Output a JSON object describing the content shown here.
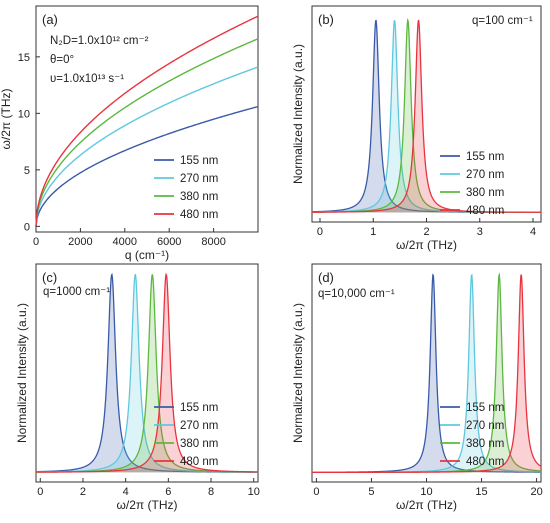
{
  "colors": {
    "155 nm": "#3a5ba8",
    "270 nm": "#5fc8de",
    "380 nm": "#5cb840",
    "480 nm": "#e8343f"
  },
  "chart_data": [
    {
      "panel": "(a)",
      "type": "line",
      "xlabel": "q (cm⁻¹)",
      "ylabel": "ω/2π (THz)",
      "xlim": [
        0,
        10000
      ],
      "ylim": [
        -0.5,
        19.5
      ],
      "xticks": [
        0,
        2000,
        4000,
        6000,
        8000
      ],
      "yticks": [
        0,
        5,
        10,
        15
      ],
      "annotations": [
        "N₂D=1.0x10¹² cm⁻²",
        "θ=0°",
        "υ=1.0x10¹³ s⁻¹"
      ],
      "legend_position": "bottom-right",
      "series": [
        {
          "name": "155 nm",
          "x": [
            0,
            100,
            1000,
            2000,
            4000,
            6000,
            8000,
            10000
          ],
          "y": [
            0,
            1.05,
            3.35,
            4.75,
            6.7,
            8.2,
            9.5,
            10.6
          ]
        },
        {
          "name": "270 nm",
          "x": [
            0,
            100,
            1000,
            2000,
            4000,
            6000,
            8000,
            10000
          ],
          "y": [
            0,
            1.4,
            4.45,
            6.3,
            8.9,
            10.9,
            12.6,
            14.1
          ]
        },
        {
          "name": "380 nm",
          "x": [
            0,
            100,
            1000,
            2000,
            4000,
            6000,
            8000,
            10000
          ],
          "y": [
            0,
            1.65,
            5.25,
            7.4,
            10.5,
            12.9,
            14.9,
            16.6
          ]
        },
        {
          "name": "480 nm",
          "x": [
            0,
            100,
            1000,
            2000,
            4000,
            6000,
            8000,
            10000
          ],
          "y": [
            0,
            1.85,
            5.9,
            8.3,
            11.8,
            14.4,
            16.7,
            18.6
          ]
        }
      ]
    },
    {
      "panel": "(b)",
      "type": "line",
      "xlabel": "ω/2π (THz)",
      "ylabel": "Normalized Intensity (a.u.)",
      "xlim": [
        -0.15,
        4.15
      ],
      "ylim": [
        0,
        1.07
      ],
      "xticks": [
        0,
        1,
        2,
        3,
        4
      ],
      "annotations": [
        "q=100 cm⁻¹"
      ],
      "legend_position": "bottom-right",
      "lineshape": "lorentzian",
      "peaks": [
        {
          "name": "155 nm",
          "center": 1.05,
          "hwhm": 0.075
        },
        {
          "name": "270 nm",
          "center": 1.4,
          "hwhm": 0.075
        },
        {
          "name": "380 nm",
          "center": 1.65,
          "hwhm": 0.075
        },
        {
          "name": "480 nm",
          "center": 1.85,
          "hwhm": 0.075
        }
      ]
    },
    {
      "panel": "(c)",
      "type": "line",
      "xlabel": "ω/2π (THz)",
      "ylabel": "Normalized Intensity (a.u.)",
      "xlim": [
        -0.2,
        10.2
      ],
      "ylim": [
        0,
        1.05
      ],
      "xticks": [
        0,
        2,
        4,
        6,
        8,
        10
      ],
      "annotations": [
        "q=1000 cm⁻¹"
      ],
      "legend_position": "bottom-right",
      "lineshape": "lorentzian",
      "peaks": [
        {
          "name": "155 nm",
          "center": 3.35,
          "hwhm": 0.22
        },
        {
          "name": "270 nm",
          "center": 4.45,
          "hwhm": 0.22
        },
        {
          "name": "380 nm",
          "center": 5.25,
          "hwhm": 0.22
        },
        {
          "name": "480 nm",
          "center": 5.9,
          "hwhm": 0.22
        }
      ]
    },
    {
      "panel": "(d)",
      "type": "line",
      "xlabel": "ω/2π (THz)",
      "ylabel": "Normalized Intensity (a.u.)",
      "xlim": [
        -0.4,
        20.4
      ],
      "ylim": [
        0,
        1.05
      ],
      "xticks": [
        0,
        5,
        10,
        15,
        20
      ],
      "annotations": [
        "q=10,000 cm⁻¹"
      ],
      "legend_position": "bottom-right",
      "lineshape": "lorentzian",
      "peaks": [
        {
          "name": "155 nm",
          "center": 10.6,
          "hwhm": 0.32
        },
        {
          "name": "270 nm",
          "center": 14.1,
          "hwhm": 0.32
        },
        {
          "name": "380 nm",
          "center": 16.6,
          "hwhm": 0.32
        },
        {
          "name": "480 nm",
          "center": 18.6,
          "hwhm": 0.32
        }
      ]
    }
  ]
}
